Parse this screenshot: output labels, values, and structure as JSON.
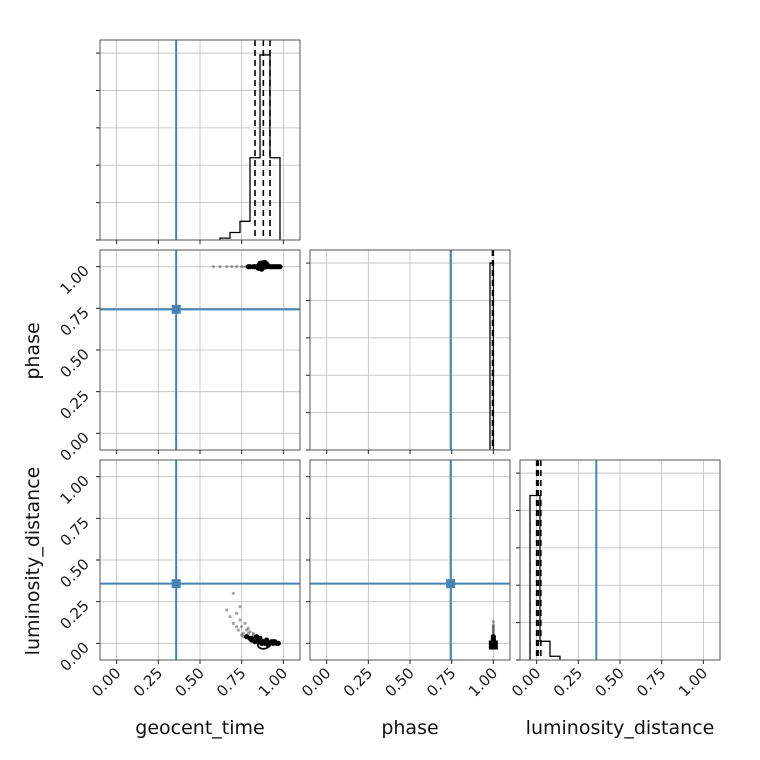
{
  "chart_data": {
    "type": "corner",
    "parameters": [
      "geocent_time",
      "phase",
      "luminosity_distance"
    ],
    "axis_labels": {
      "geocent_time": "geocent_time",
      "phase": "phase",
      "luminosity_distance": "luminosity_distance"
    },
    "ticks": [
      0.0,
      0.25,
      0.5,
      0.75,
      1.0
    ],
    "tick_labels": [
      "0.00",
      "0.25",
      "0.50",
      "0.75",
      "1.00"
    ],
    "ranges": {
      "geocent_time": [
        -0.1,
        1.1
      ],
      "phase": [
        -0.1,
        1.1
      ],
      "luminosity_distance": [
        -0.1,
        1.1
      ]
    },
    "truth_values": {
      "geocent_time": 0.357,
      "phase": 0.744,
      "luminosity_distance": 0.358
    },
    "truth_color": "#4682b4",
    "grid": true,
    "histograms": [
      {
        "parameter": "geocent_time",
        "edges": [
          0.62,
          0.68,
          0.74,
          0.8,
          0.86,
          0.92,
          0.98
        ],
        "counts": [
          1,
          4,
          10,
          44,
          99,
          44
        ],
        "max_count": 100,
        "quantiles": [
          0.83,
          0.88,
          0.92
        ],
        "median": 0.88
      },
      {
        "parameter": "phase",
        "edges": [
          0.98,
          1.0,
          1.04
        ],
        "counts": [
          100,
          0
        ],
        "max_count": 100,
        "quantiles": [
          0.995,
          1.0
        ],
        "median": 1.0
      },
      {
        "parameter": "luminosity_distance",
        "edges": [
          -0.04,
          0.02,
          0.08,
          0.14
        ],
        "counts": [
          88,
          10,
          2
        ],
        "max_count": 100,
        "quantiles": [
          0.0,
          0.01,
          0.025
        ],
        "median": 0.01
      }
    ],
    "scatter_panels": [
      {
        "x": "geocent_time",
        "y": "phase",
        "samples_x": [
          0.58,
          0.62,
          0.66,
          0.69,
          0.72,
          0.75,
          0.77,
          0.79,
          0.8,
          0.82,
          0.83,
          0.84,
          0.85,
          0.86,
          0.87,
          0.88,
          0.89,
          0.9,
          0.91,
          0.92,
          0.93,
          0.94,
          0.95,
          0.96,
          0.97,
          0.98,
          0.86,
          0.88,
          0.9,
          0.85,
          0.87,
          0.89
        ],
        "samples_y": [
          1.0,
          1.0,
          1.0,
          1.0,
          1.0,
          1.0,
          1.0,
          1.0,
          1.0,
          1.0,
          1.0,
          1.0,
          1.0,
          1.0,
          1.0,
          1.0,
          1.0,
          1.0,
          1.0,
          1.0,
          1.0,
          1.0,
          1.0,
          1.0,
          1.0,
          1.0,
          1.02,
          1.01,
          1.015,
          0.99,
          0.985,
          1.025
        ],
        "peak": [
          0.88,
          1.01
        ]
      },
      {
        "x": "geocent_time",
        "y": "luminosity_distance",
        "samples_x": [
          0.66,
          0.68,
          0.7,
          0.72,
          0.73,
          0.74,
          0.75,
          0.76,
          0.77,
          0.78,
          0.79,
          0.8,
          0.81,
          0.82,
          0.83,
          0.84,
          0.85,
          0.86,
          0.87,
          0.88,
          0.89,
          0.9,
          0.91,
          0.92,
          0.93,
          0.94,
          0.95,
          0.96,
          0.97,
          0.75,
          0.78,
          0.8,
          0.82,
          0.84,
          0.86,
          0.88,
          0.9,
          0.72,
          0.76,
          0.79,
          0.83,
          0.87,
          0.91,
          0.94,
          0.7,
          0.74,
          0.81,
          0.85
        ],
        "samples_y": [
          0.2,
          0.16,
          0.12,
          0.18,
          0.08,
          0.14,
          0.1,
          0.06,
          0.12,
          0.04,
          0.09,
          0.07,
          0.03,
          0.05,
          0.02,
          0.04,
          0.01,
          0.02,
          0.0,
          0.01,
          0.0,
          0.01,
          -0.01,
          0.0,
          0.01,
          0.0,
          0.01,
          0.0,
          0.0,
          0.05,
          0.08,
          0.03,
          0.06,
          0.02,
          0.03,
          0.01,
          0.02,
          0.1,
          0.04,
          0.06,
          0.01,
          0.0,
          0.0,
          0.01,
          0.3,
          0.22,
          0.02,
          0.01
        ],
        "peak": [
          0.88,
          -0.01
        ]
      },
      {
        "x": "phase",
        "y": "luminosity_distance",
        "samples_x": [
          1.0,
          1.0,
          1.0,
          1.0,
          1.0,
          1.0,
          1.0,
          1.0,
          1.0,
          1.0,
          1.0,
          1.0,
          1.0,
          1.0
        ],
        "samples_y": [
          0.13,
          0.11,
          0.1,
          0.09,
          0.08,
          0.07,
          0.06,
          0.05,
          0.04,
          0.03,
          0.02,
          0.01,
          0.0,
          -0.01
        ],
        "peak": [
          1.0,
          -0.01
        ]
      }
    ]
  }
}
